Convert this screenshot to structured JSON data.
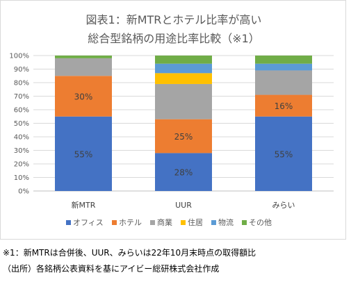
{
  "chart_data": {
    "type": "bar",
    "stacked": true,
    "title_line1": "図表1：新MTRとホテル比率が高い",
    "title_line2": "総合型銘柄の用途比率比較（※1）",
    "categories": [
      "新MTR",
      "UUR",
      "みらい"
    ],
    "ylim": [
      0,
      100
    ],
    "y_ticks": [
      "0%",
      "10%",
      "20%",
      "30%",
      "40%",
      "50%",
      "60%",
      "70%",
      "80%",
      "90%",
      "100%"
    ],
    "grid": true,
    "legend_position": "bottom",
    "series": [
      {
        "name": "オフィス",
        "color": "#4472c4",
        "values": [
          55,
          28,
          55
        ],
        "labels": [
          "55%",
          "28%",
          "55%"
        ]
      },
      {
        "name": "ホテル",
        "color": "#ed7d31",
        "values": [
          30,
          25,
          16
        ],
        "labels": [
          "30%",
          "25%",
          "16%"
        ]
      },
      {
        "name": "商業",
        "color": "#a5a5a5",
        "values": [
          13,
          26,
          18
        ],
        "labels": [
          "",
          "",
          ""
        ]
      },
      {
        "name": "住居",
        "color": "#ffc000",
        "values": [
          0,
          8,
          0
        ],
        "labels": [
          "",
          "",
          ""
        ]
      },
      {
        "name": "物流",
        "color": "#5b9bd5",
        "values": [
          0,
          7,
          5
        ],
        "labels": [
          "",
          "",
          ""
        ]
      },
      {
        "name": "その他",
        "color": "#70ad47",
        "values": [
          2,
          6,
          6
        ],
        "labels": [
          "",
          "",
          ""
        ]
      }
    ]
  },
  "footnotes": {
    "note1": "※1：新MTRは合併後、UUR、みらいは22年10月末時点の取得額比",
    "source": "（出所）各銘柄公表資料を基にアイビー総研株式会社作成"
  }
}
